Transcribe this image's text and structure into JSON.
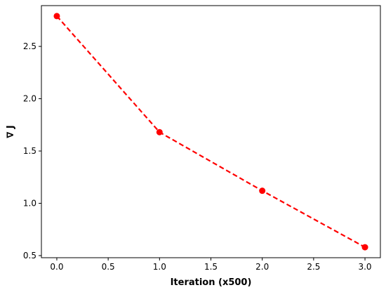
{
  "chart_data": {
    "type": "line",
    "title": "",
    "xlabel": "Iteration (x500)",
    "ylabel": "∇ J",
    "xlim": [
      -0.15,
      3.15
    ],
    "ylim": [
      0.48,
      2.89
    ],
    "xticks": [
      0.0,
      0.5,
      1.0,
      1.5,
      2.0,
      2.5,
      3.0
    ],
    "xtick_labels": [
      "0.0",
      "0.5",
      "1.0",
      "1.5",
      "2.0",
      "2.5",
      "3.0"
    ],
    "yticks": [
      0.5,
      1.0,
      1.5,
      2.0,
      2.5
    ],
    "ytick_labels": [
      "0.5",
      "1.0",
      "1.5",
      "2.0",
      "2.5"
    ],
    "grid": false,
    "series": [
      {
        "x": [
          0,
          1,
          2,
          3
        ],
        "y": [
          2.79,
          1.68,
          1.12,
          0.58
        ],
        "color": "#ff0000",
        "line_style": "dashed",
        "marker": "circle"
      }
    ]
  }
}
